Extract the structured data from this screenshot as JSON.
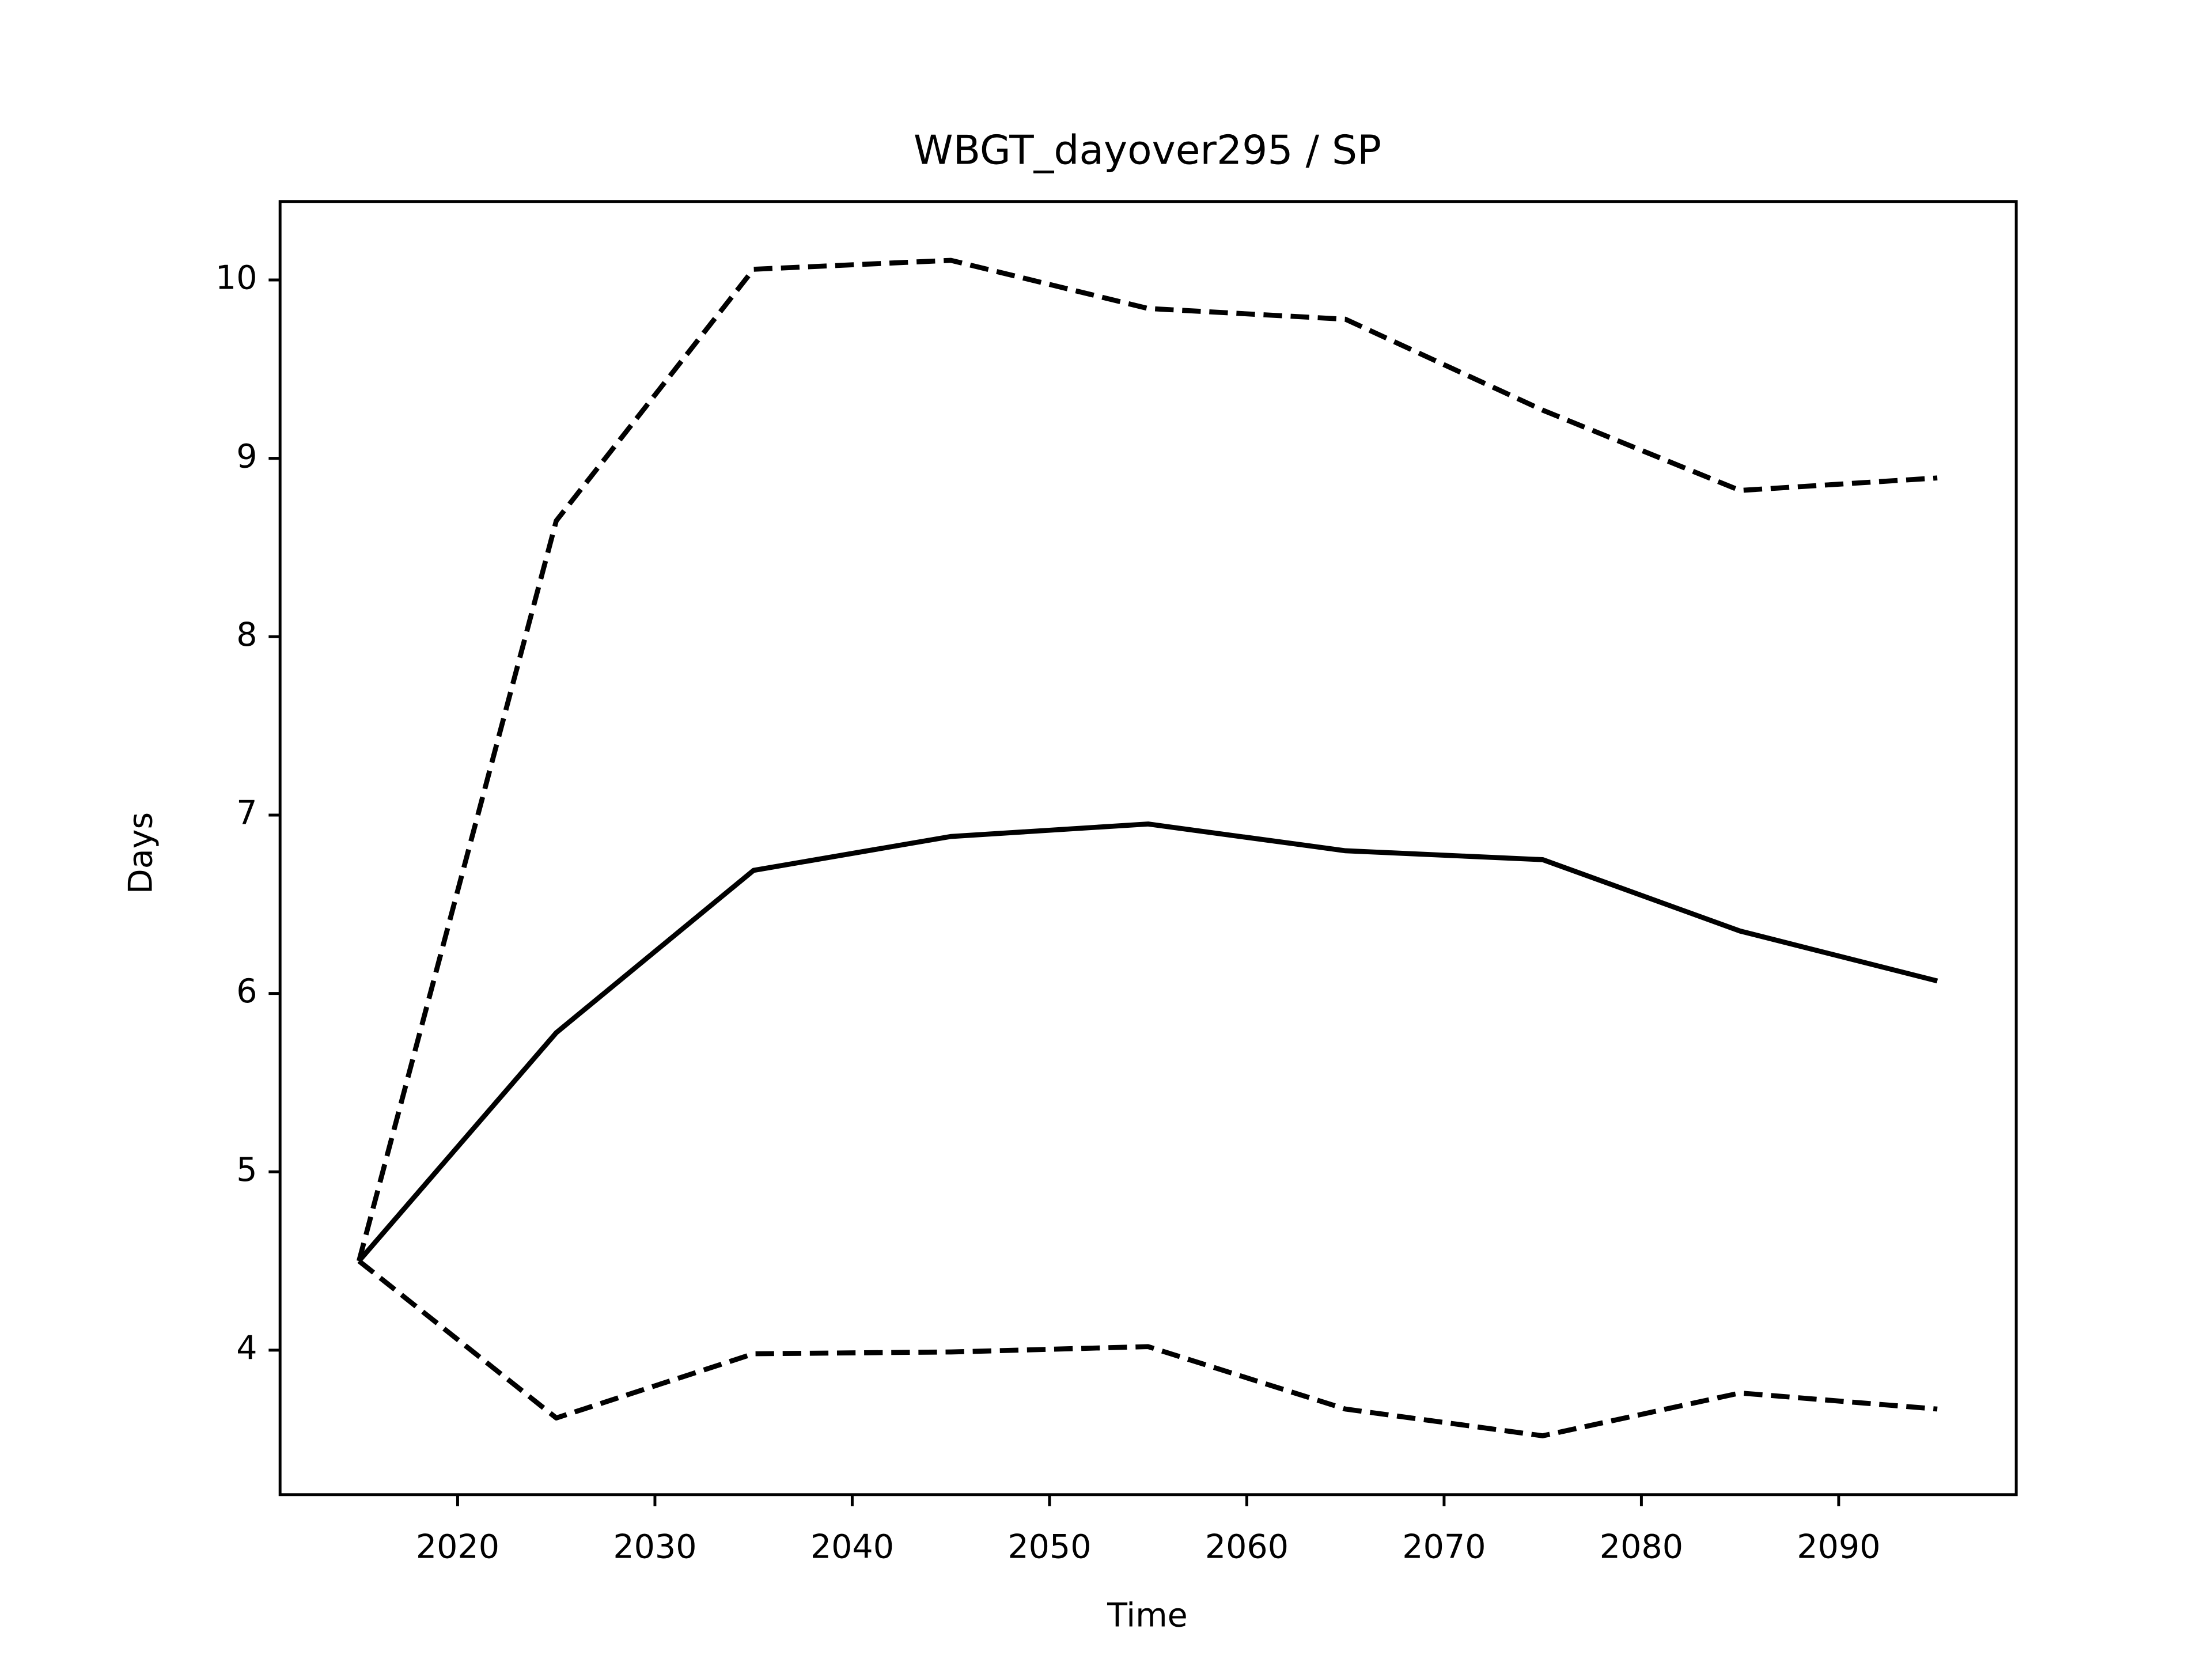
{
  "chart_data": {
    "type": "line",
    "title": "WBGT_dayover295 / SP",
    "x_label": "Time",
    "y_label": "Days",
    "x": [
      2015,
      2025,
      2035,
      2045,
      2055,
      2065,
      2075,
      2085,
      2095
    ],
    "series": [
      {
        "color": "#000000",
        "linestyle": "solid",
        "values": [
          4.5,
          5.78,
          6.69,
          6.88,
          6.95,
          6.8,
          6.75,
          6.35,
          6.07
        ]
      },
      {
        "color": "#000000",
        "linestyle": "dashed",
        "values": [
          4.5,
          8.65,
          10.06,
          10.11,
          9.84,
          9.78,
          9.27,
          8.82,
          8.89
        ]
      },
      {
        "color": "#000000",
        "linestyle": "dashed",
        "values": [
          4.5,
          3.62,
          3.98,
          3.99,
          4.02,
          3.67,
          3.52,
          3.76,
          3.67
        ]
      }
    ],
    "xlim": [
      2011,
      2099
    ],
    "xticks": [
      2020,
      2030,
      2040,
      2050,
      2060,
      2070,
      2080,
      2090
    ],
    "ylim": [
      3.19,
      10.44
    ],
    "yticks": [
      4,
      5,
      6,
      7,
      8,
      9,
      10
    ],
    "grid": false
  }
}
